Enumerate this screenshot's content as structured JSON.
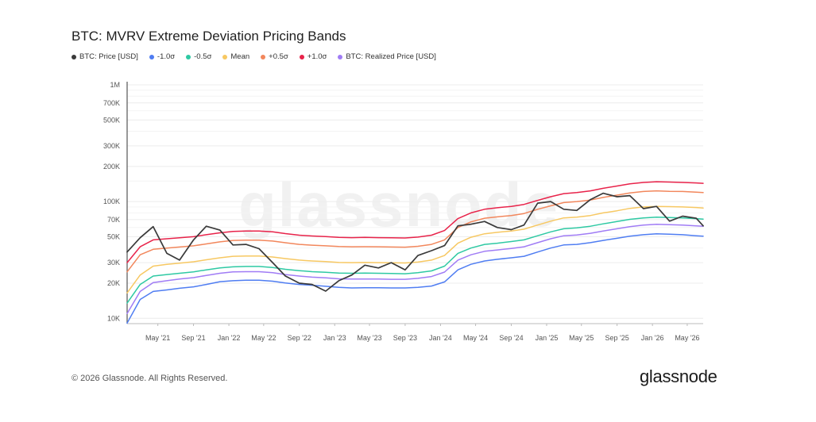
{
  "chart_data": {
    "type": "line",
    "title": "BTC: MVRV Extreme Deviation Pricing Bands",
    "yscale": "log",
    "ylim": [
      9000,
      1000000
    ],
    "xlim": [
      "2021-01-15",
      "2026-06-25"
    ],
    "y_ticks": [
      {
        "value": 10000,
        "label": "10K"
      },
      {
        "value": 20000,
        "label": "20K"
      },
      {
        "value": 30000,
        "label": "30K"
      },
      {
        "value": 50000,
        "label": "50K"
      },
      {
        "value": 70000,
        "label": "70K"
      },
      {
        "value": 100000,
        "label": "100K"
      },
      {
        "value": 200000,
        "label": "200K"
      },
      {
        "value": 300000,
        "label": "300K"
      },
      {
        "value": 500000,
        "label": "500K"
      },
      {
        "value": 700000,
        "label": "700K"
      },
      {
        "value": 1000000,
        "label": "1M"
      }
    ],
    "x_ticks": [
      {
        "date": "2021-05-01",
        "label": "May '21"
      },
      {
        "date": "2021-09-01",
        "label": "Sep '21"
      },
      {
        "date": "2022-01-01",
        "label": "Jan '22"
      },
      {
        "date": "2022-05-01",
        "label": "May '22"
      },
      {
        "date": "2022-09-01",
        "label": "Sep '22"
      },
      {
        "date": "2023-01-01",
        "label": "Jan '23"
      },
      {
        "date": "2023-05-01",
        "label": "May '23"
      },
      {
        "date": "2023-09-01",
        "label": "Sep '23"
      },
      {
        "date": "2024-01-01",
        "label": "Jan '24"
      },
      {
        "date": "2024-05-01",
        "label": "May '24"
      },
      {
        "date": "2024-09-01",
        "label": "Sep '24"
      },
      {
        "date": "2025-01-01",
        "label": "Jan '25"
      },
      {
        "date": "2025-05-01",
        "label": "May '25"
      },
      {
        "date": "2025-09-01",
        "label": "Sep '25"
      },
      {
        "date": "2026-01-01",
        "label": "Jan '26"
      },
      {
        "date": "2026-05-01",
        "label": "May '26"
      }
    ],
    "grid": true,
    "legend_position": "top-left",
    "x": [
      "2021-01-15",
      "2021-03-01",
      "2021-04-15",
      "2021-06-01",
      "2021-07-15",
      "2021-09-01",
      "2021-10-15",
      "2021-12-01",
      "2022-01-15",
      "2022-03-01",
      "2022-04-15",
      "2022-06-01",
      "2022-07-15",
      "2022-09-01",
      "2022-10-15",
      "2022-12-01",
      "2023-01-15",
      "2023-03-01",
      "2023-04-15",
      "2023-06-01",
      "2023-07-15",
      "2023-09-01",
      "2023-10-15",
      "2023-12-01",
      "2024-01-15",
      "2024-03-01",
      "2024-04-15",
      "2024-06-01",
      "2024-07-15",
      "2024-09-01",
      "2024-10-15",
      "2024-12-01",
      "2025-01-15",
      "2025-03-01",
      "2025-04-15",
      "2025-06-01",
      "2025-07-15",
      "2025-09-01",
      "2025-10-15",
      "2025-12-01",
      "2026-01-15",
      "2026-03-01",
      "2026-04-15",
      "2026-06-01",
      "2026-06-25"
    ],
    "series": [
      {
        "name": "BTC: Price [USD]",
        "color": "#3a3a3a",
        "values": [
          37000,
          49000,
          61000,
          36000,
          31500,
          47000,
          61500,
          57000,
          42500,
          43000,
          39500,
          30000,
          23000,
          20000,
          19500,
          17100,
          21000,
          23500,
          28500,
          27000,
          30000,
          26000,
          34500,
          38000,
          42000,
          62000,
          64000,
          67500,
          60000,
          57500,
          63000,
          97000,
          100000,
          86000,
          84000,
          104000,
          118000,
          110000,
          112500,
          87000,
          91000,
          68000,
          75000,
          72000,
          62000
        ]
      },
      {
        "name": "-1.0σ",
        "color": "#4f7df2",
        "values": [
          9100,
          14500,
          17000,
          17500,
          18100,
          18600,
          19500,
          20600,
          21000,
          21200,
          21200,
          20800,
          20100,
          19500,
          19200,
          18800,
          18400,
          18200,
          18300,
          18300,
          18200,
          18200,
          18400,
          18900,
          20500,
          26000,
          29000,
          31000,
          32000,
          33000,
          34000,
          37000,
          40000,
          42500,
          43000,
          44500,
          46500,
          48500,
          50500,
          52000,
          53000,
          52500,
          52000,
          51000,
          50500
        ]
      },
      {
        "name": "-0.5σ",
        "color": "#2ec9a3",
        "values": [
          13500,
          19500,
          23000,
          23700,
          24300,
          25000,
          26000,
          27000,
          27600,
          27800,
          27800,
          27200,
          26300,
          25600,
          25100,
          24800,
          24400,
          24300,
          24400,
          24300,
          24200,
          24100,
          24600,
          25500,
          28000,
          36000,
          40000,
          43000,
          44000,
          45500,
          47000,
          51000,
          55000,
          58500,
          59500,
          61500,
          64500,
          67500,
          70500,
          72500,
          73500,
          73000,
          72500,
          71500,
          70800
        ]
      },
      {
        "name": "Mean",
        "color": "#f7c862",
        "values": [
          16500,
          23500,
          28000,
          29000,
          29700,
          30500,
          31700,
          33000,
          34000,
          34200,
          34200,
          33500,
          32500,
          31500,
          31000,
          30600,
          30100,
          30000,
          30100,
          30000,
          29900,
          29800,
          30300,
          31500,
          34500,
          44000,
          49500,
          53000,
          54500,
          56000,
          58000,
          63000,
          68000,
          72500,
          73500,
          76000,
          80000,
          83500,
          87500,
          90000,
          91000,
          90500,
          90000,
          89000,
          88000
        ]
      },
      {
        "name": "+0.5σ",
        "color": "#f2875c",
        "values": [
          25000,
          35000,
          39000,
          40000,
          40800,
          41800,
          43400,
          45200,
          46500,
          46800,
          46800,
          45900,
          44400,
          43000,
          42300,
          41800,
          41200,
          41000,
          41100,
          41000,
          40800,
          40700,
          41400,
          43000,
          47000,
          60000,
          67000,
          72000,
          74000,
          76000,
          79000,
          86000,
          92000,
          98000,
          100000,
          103000,
          108500,
          113500,
          118500,
          122000,
          123500,
          122500,
          122000,
          120500,
          119500
        ]
      },
      {
        "name": "+1.0σ",
        "color": "#e8234a",
        "values": [
          30000,
          41000,
          47000,
          48000,
          49000,
          50000,
          52000,
          54000,
          55500,
          56000,
          56000,
          55000,
          53200,
          51500,
          50700,
          50100,
          49400,
          49100,
          49300,
          49100,
          48900,
          48800,
          49600,
          51500,
          56500,
          71500,
          80000,
          86000,
          88500,
          91000,
          94500,
          102500,
          110000,
          117000,
          119500,
          123500,
          130000,
          136000,
          142000,
          146000,
          148000,
          147000,
          146000,
          144500,
          143500
        ]
      },
      {
        "name": "BTC: Realized Price [USD]",
        "color": "#a07cf5",
        "values": [
          11000,
          17000,
          20200,
          21000,
          21700,
          22300,
          23300,
          24300,
          25000,
          25100,
          25100,
          24600,
          23700,
          23000,
          22500,
          22200,
          21800,
          21700,
          21700,
          21700,
          21600,
          21600,
          22000,
          22800,
          24900,
          31500,
          35000,
          37500,
          38500,
          39700,
          41000,
          44500,
          48000,
          51000,
          51800,
          53500,
          56000,
          58500,
          61000,
          63000,
          64000,
          63500,
          63000,
          62000,
          61500
        ]
      }
    ]
  },
  "footer": {
    "copyright": "© 2026 Glassnode. All Rights Reserved."
  },
  "brand": {
    "logo_text": "glassnode",
    "watermark": "glassnode"
  }
}
